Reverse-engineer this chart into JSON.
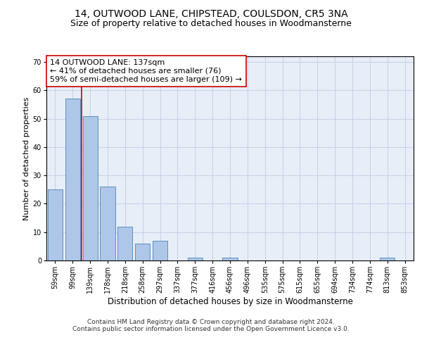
{
  "title1": "14, OUTWOOD LANE, CHIPSTEAD, COULSDON, CR5 3NA",
  "title2": "Size of property relative to detached houses in Woodmansterne",
  "xlabel": "Distribution of detached houses by size in Woodmansterne",
  "ylabel": "Number of detached properties",
  "bar_labels": [
    "59sqm",
    "99sqm",
    "139sqm",
    "178sqm",
    "218sqm",
    "258sqm",
    "297sqm",
    "337sqm",
    "377sqm",
    "416sqm",
    "456sqm",
    "496sqm",
    "535sqm",
    "575sqm",
    "615sqm",
    "655sqm",
    "694sqm",
    "734sqm",
    "774sqm",
    "813sqm",
    "853sqm"
  ],
  "bar_values": [
    25,
    57,
    51,
    26,
    12,
    6,
    7,
    0,
    1,
    0,
    1,
    0,
    0,
    0,
    0,
    0,
    0,
    0,
    0,
    1,
    0
  ],
  "bar_color": "#aec6e8",
  "bar_edge_color": "#5a8fc0",
  "ylim": [
    0,
    72
  ],
  "yticks": [
    0,
    10,
    20,
    30,
    40,
    50,
    60,
    70
  ],
  "grid_color": "#c8d4e8",
  "background_color": "#e8eef8",
  "vline_x": 1.5,
  "vline_color": "#cc0000",
  "annotation_text": "14 OUTWOOD LANE: 137sqm\n← 41% of detached houses are smaller (76)\n59% of semi-detached houses are larger (109) →",
  "annotation_box_color": "#ffffff",
  "annotation_box_edge_color": "#cc0000",
  "footer1": "Contains HM Land Registry data © Crown copyright and database right 2024.",
  "footer2": "Contains public sector information licensed under the Open Government Licence v3.0.",
  "title1_fontsize": 10,
  "title2_fontsize": 9,
  "xlabel_fontsize": 8.5,
  "ylabel_fontsize": 8,
  "tick_fontsize": 7,
  "annotation_fontsize": 8,
  "footer_fontsize": 6.5
}
